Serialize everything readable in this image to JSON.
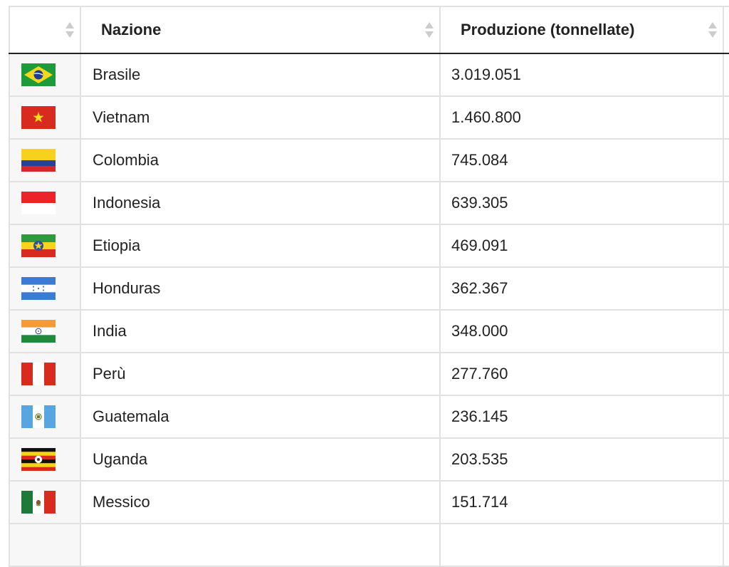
{
  "table": {
    "headers": {
      "flag": "",
      "nation": "Nazione",
      "production": "Produzione (tonnellate)"
    },
    "rows": [
      {
        "flag": "brazil-flag-icon",
        "nation": "Brasile",
        "production": "3.019.051"
      },
      {
        "flag": "vietnam-flag-icon",
        "nation": "Vietnam",
        "production": "1.460.800"
      },
      {
        "flag": "colombia-flag-icon",
        "nation": "Colombia",
        "production": "745.084"
      },
      {
        "flag": "indonesia-flag-icon",
        "nation": "Indonesia",
        "production": "639.305"
      },
      {
        "flag": "ethiopia-flag-icon",
        "nation": "Etiopia",
        "production": "469.091"
      },
      {
        "flag": "honduras-flag-icon",
        "nation": "Honduras",
        "production": "362.367"
      },
      {
        "flag": "india-flag-icon",
        "nation": "India",
        "production": "348.000"
      },
      {
        "flag": "peru-flag-icon",
        "nation": "Perù",
        "production": "277.760"
      },
      {
        "flag": "guatemala-flag-icon",
        "nation": "Guatemala",
        "production": "236.145"
      },
      {
        "flag": "uganda-flag-icon",
        "nation": "Uganda",
        "production": "203.535"
      },
      {
        "flag": "mexico-flag-icon",
        "nation": "Messico",
        "production": "151.714"
      }
    ]
  },
  "colors": {
    "border": "#e1e1e1",
    "header_rule": "#222222",
    "sort_arrow": "#cccccc",
    "flag_cell_bg": "#f7f7f7"
  }
}
